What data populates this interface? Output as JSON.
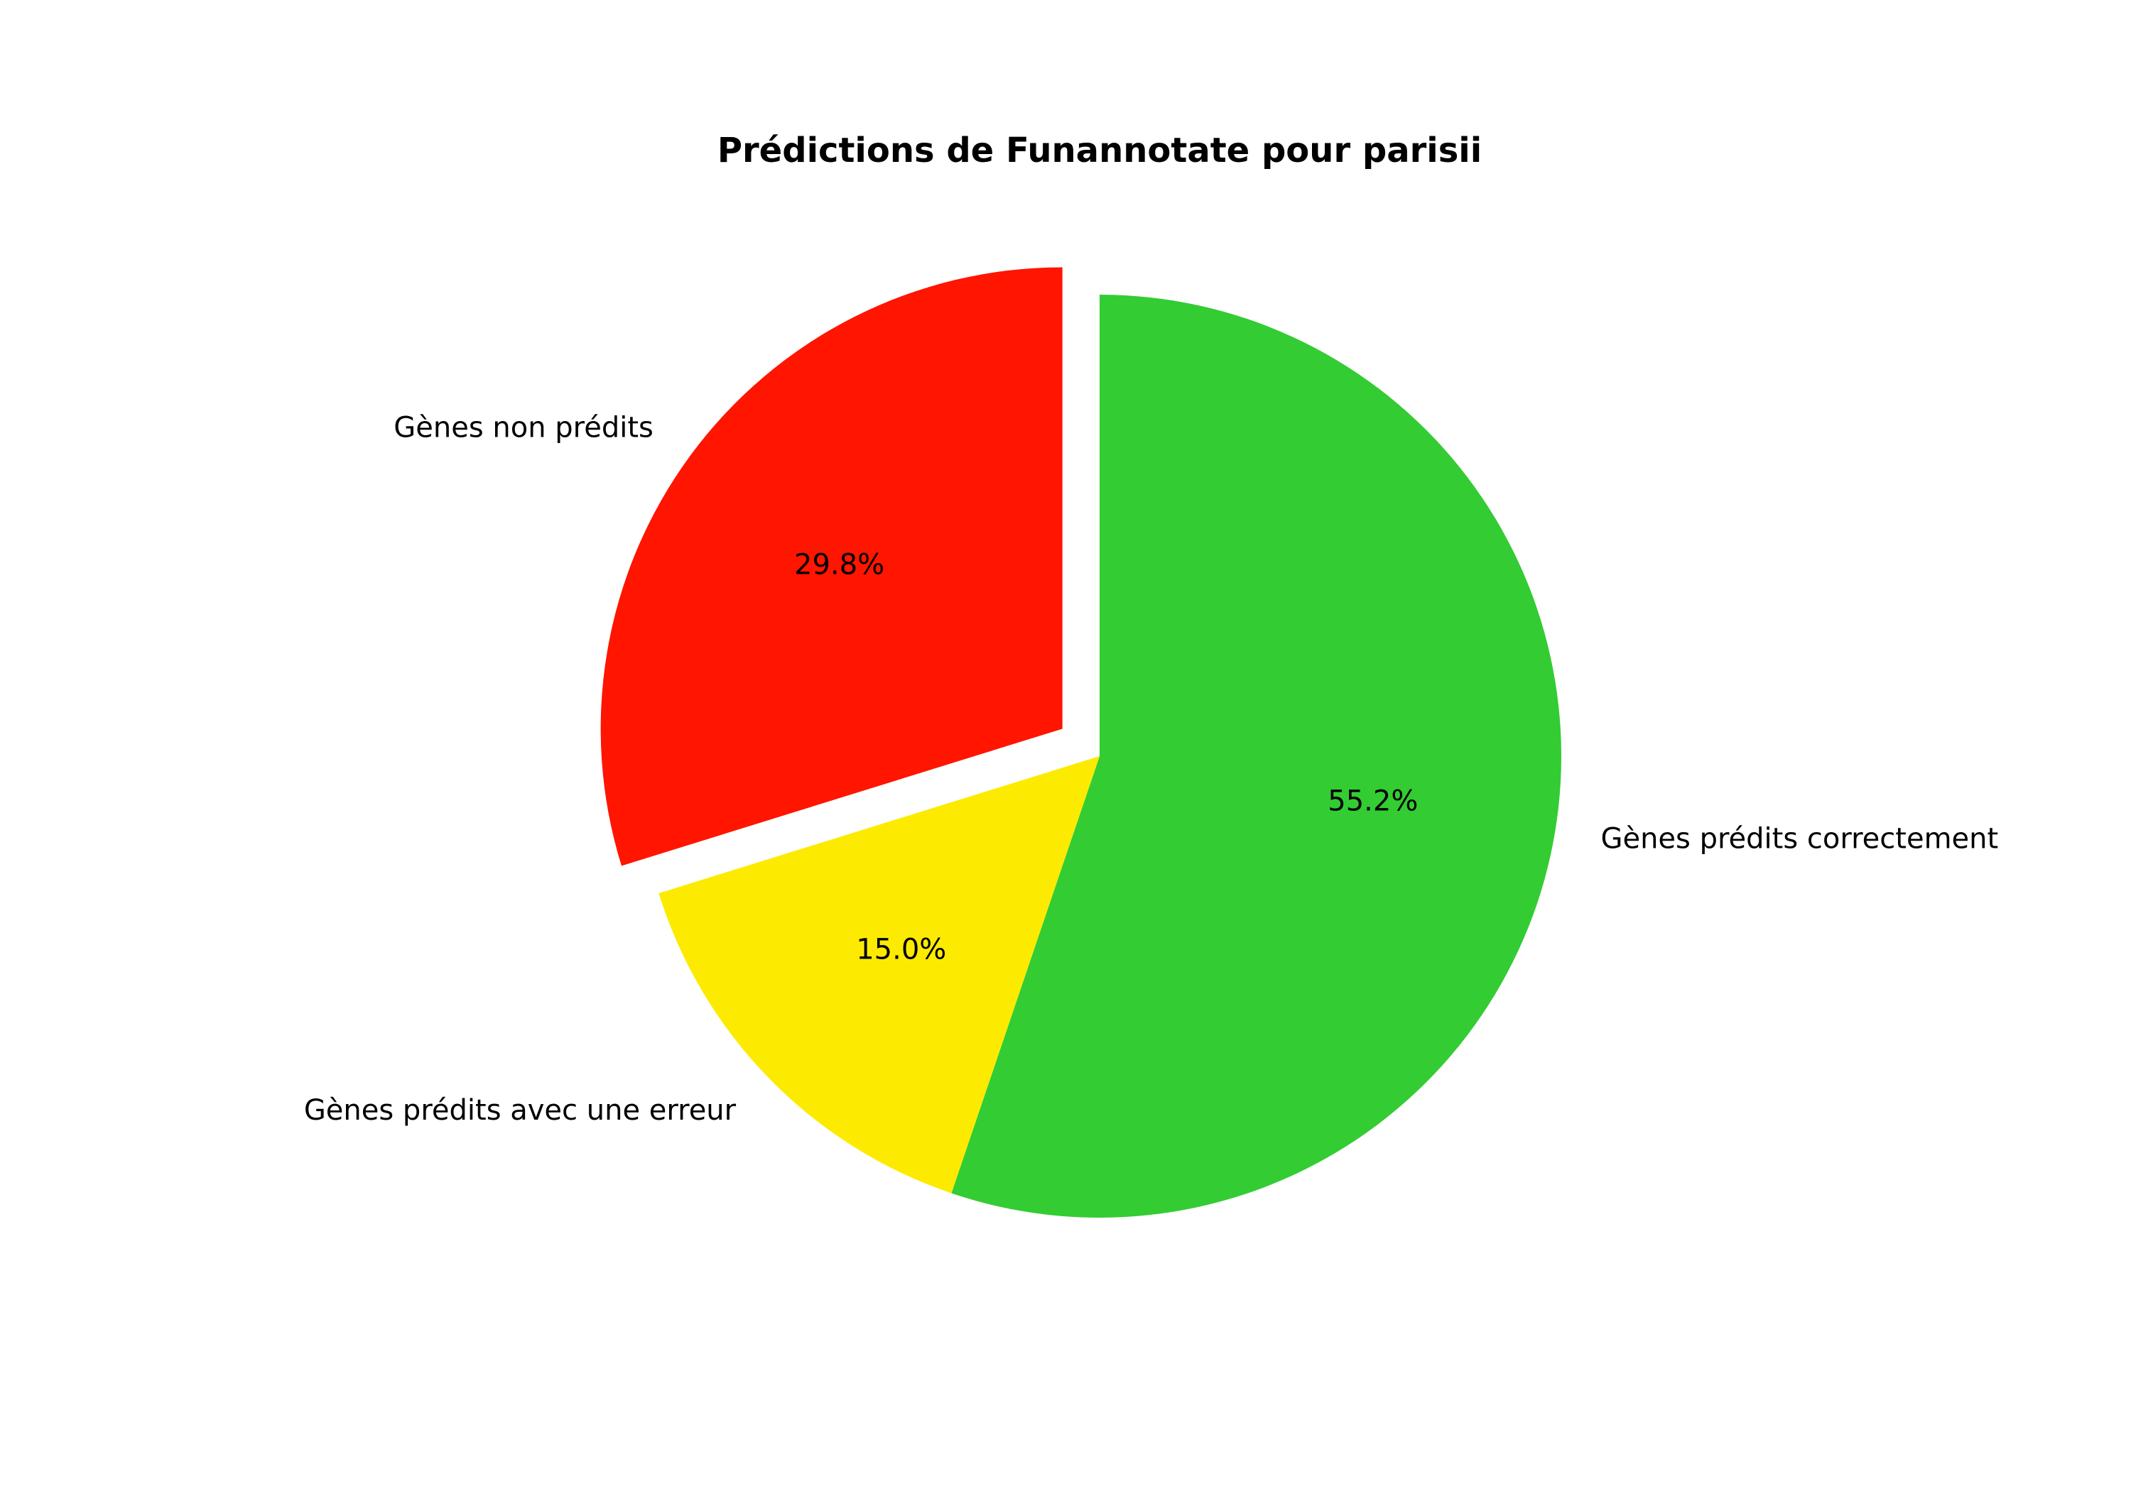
{
  "chart_data": {
    "type": "pie",
    "title": "Prédictions de Funannotate pour parisii",
    "slices": [
      {
        "label": "Gènes prédits correctement",
        "value": 55.2,
        "pct_label": "55.2%",
        "color": "#33CC33",
        "exploded": false
      },
      {
        "label": "Gènes prédits avec une erreur",
        "value": 15.0,
        "pct_label": "15.0%",
        "color": "#FCEB00",
        "exploded": false
      },
      {
        "label": "Gènes non prédits",
        "value": 29.8,
        "pct_label": "29.8%",
        "color": "#FF1500",
        "exploded": true
      }
    ],
    "start_angle_deg": 90,
    "direction": "clockwise",
    "legend": "none"
  }
}
